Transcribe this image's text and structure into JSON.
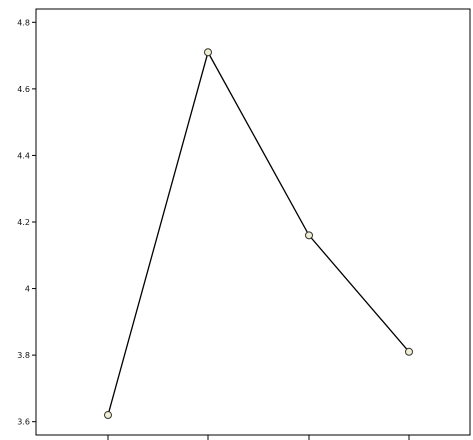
{
  "chart_data": {
    "type": "line",
    "title": "",
    "xlabel": "",
    "ylabel": "",
    "categories": [
      "",
      "",
      "",
      ""
    ],
    "series": [
      {
        "values": [
          3.62,
          4.71,
          4.16,
          3.81
        ]
      }
    ],
    "ylim": [
      3.56,
      4.84
    ],
    "yticks": [
      3.6,
      3.8,
      4.0,
      4.2,
      4.4,
      4.6,
      4.8
    ],
    "ytick_labels": [
      "3.6",
      "3.8",
      "4",
      "4.2",
      "4.4",
      "4.6",
      "4.8"
    ],
    "grid": false,
    "legend": "none",
    "colors": {
      "line": "#000000",
      "marker_fill": "#f0eed0",
      "marker_stroke": "#333333",
      "axis": "#000000"
    }
  }
}
